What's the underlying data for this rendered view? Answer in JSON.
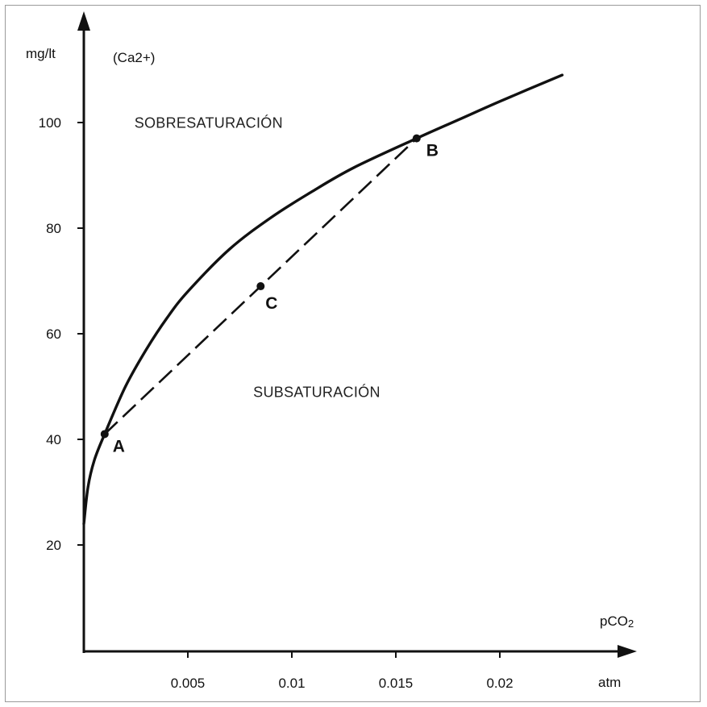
{
  "chart_data": {
    "type": "line",
    "x_axis": {
      "label": "pCO2",
      "unit": "atm",
      "ticks": [
        0.005,
        0.01,
        0.015,
        0.02
      ],
      "tick_labels": [
        "0.005",
        "0.01",
        "0.015",
        "0.02"
      ],
      "range": [
        0,
        0.026
      ]
    },
    "y_axis": {
      "label": "mg/lt",
      "species": "(Ca2+)",
      "ticks": [
        20,
        40,
        60,
        80,
        100
      ],
      "tick_labels": [
        "20",
        "40",
        "60",
        "80",
        "100"
      ],
      "range": [
        0,
        115
      ]
    },
    "series": [
      {
        "type": "curve",
        "color": "#111111",
        "points": [
          {
            "x": 0.0,
            "y": 24
          },
          {
            "x": 0.0002,
            "y": 31
          },
          {
            "x": 0.0005,
            "y": 36
          },
          {
            "x": 0.001,
            "y": 41
          },
          {
            "x": 0.002,
            "y": 50
          },
          {
            "x": 0.003,
            "y": 57
          },
          {
            "x": 0.004,
            "y": 63
          },
          {
            "x": 0.005,
            "y": 68
          },
          {
            "x": 0.007,
            "y": 76
          },
          {
            "x": 0.009,
            "y": 82
          },
          {
            "x": 0.011,
            "y": 87
          },
          {
            "x": 0.013,
            "y": 91.5
          },
          {
            "x": 0.016,
            "y": 97
          },
          {
            "x": 0.018,
            "y": 100.5
          },
          {
            "x": 0.02,
            "y": 104
          },
          {
            "x": 0.023,
            "y": 109
          }
        ]
      },
      {
        "type": "dashed-line",
        "color": "#111111",
        "points": [
          {
            "x": 0.001,
            "y": 41
          },
          {
            "x": 0.016,
            "y": 97
          }
        ]
      }
    ],
    "points": [
      {
        "label": "A",
        "x": 0.001,
        "y": 41
      },
      {
        "label": "B",
        "x": 0.016,
        "y": 97
      },
      {
        "label": "C",
        "x": 0.0085,
        "y": 69
      }
    ],
    "regions": [
      {
        "label": "SOBRESATURACIÓN",
        "x": 0.006,
        "y": 99
      },
      {
        "label": "SUBSATURACIÓN",
        "x": 0.0112,
        "y": 48
      }
    ],
    "grid": false,
    "legend": "none"
  }
}
